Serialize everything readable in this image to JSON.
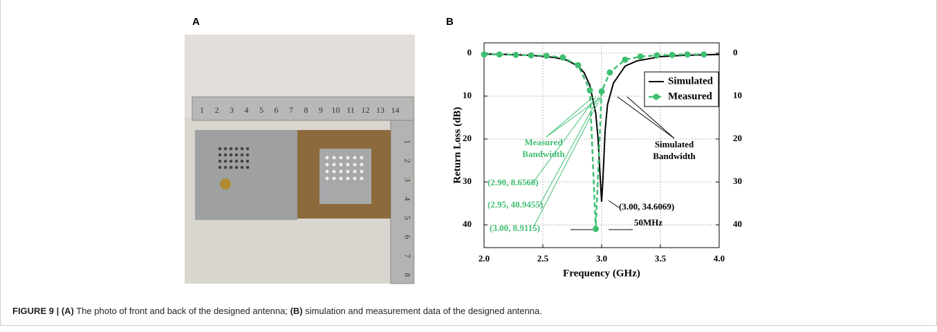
{
  "panels": [
    "A",
    "B"
  ],
  "photo": {
    "ruler_top": [
      "1",
      "2",
      "3",
      "4",
      "5",
      "6",
      "7",
      "8",
      "9",
      "10",
      "11",
      "12",
      "13",
      "14"
    ],
    "ruler_side": [
      "1",
      "2",
      "3",
      "4",
      "5",
      "6",
      "7",
      "8"
    ]
  },
  "chart_data": {
    "type": "line",
    "xlabel": "Frequency (GHz)",
    "ylabel": "Return Loss (dB)",
    "xlim": [
      2.0,
      4.0
    ],
    "xticks": [
      {
        "value": 2,
        "label": "2.0"
      },
      {
        "value": 2.5,
        "label": "2.5"
      },
      {
        "value": 3,
        "label": "3.0"
      },
      {
        "value": 3.5,
        "label": "3.5"
      },
      {
        "value": 4,
        "label": "4.0"
      }
    ],
    "ylim": [
      45.3,
      -2.4
    ],
    "yticks": [
      0,
      10,
      20,
      30,
      40
    ],
    "y2lim": [
      45.3,
      -2.4
    ],
    "y2ticks": [
      0,
      10,
      20,
      30,
      40
    ],
    "grid": true,
    "legend": "upper right",
    "series": [
      {
        "name": "Simulated",
        "color": "#000000",
        "x": [
          2.0,
          2.2,
          2.4,
          2.6,
          2.7,
          2.8,
          2.85,
          2.9,
          2.95,
          2.97,
          2.99,
          3.0,
          3.01,
          3.03,
          3.05,
          3.1,
          3.2,
          3.3,
          3.5,
          3.7,
          4.0
        ],
        "values": [
          0.2,
          0.3,
          0.5,
          1.0,
          1.6,
          3.0,
          4.5,
          7.5,
          14,
          20,
          30,
          34.6069,
          30,
          18,
          12,
          7,
          3,
          1.8,
          0.8,
          0.5,
          0.3
        ]
      },
      {
        "name": "Measured",
        "color": "#3fbf72",
        "x": [
          2.0,
          2.13,
          2.27,
          2.4,
          2.53,
          2.67,
          2.8,
          2.9,
          2.95,
          3.0,
          3.07,
          3.2,
          3.33,
          3.47,
          3.6,
          3.73,
          3.87
        ],
        "values": [
          0.3,
          0.3,
          0.4,
          0.5,
          0.6,
          1.0,
          2.8,
          8.6568,
          40.9455,
          8.9115,
          4.5,
          1.5,
          0.8,
          0.5,
          0.4,
          0.3,
          0.3
        ]
      }
    ],
    "annotations": [
      "Measured",
      "Bandwidth",
      "Simulated",
      "Bandwidth",
      "(2.90,  8.6568)",
      "(2.95,  40.9455)",
      "(3.00,  8.9115)",
      "(3.00,  34.6069)",
      "50MHz"
    ]
  },
  "caption": {
    "label": "FIGURE 9 | (A)",
    "text_a": " The photo of front and back of the designed antenna; ",
    "label_b": "(B)",
    "text_b": " simulation and measurement data of the designed antenna."
  }
}
